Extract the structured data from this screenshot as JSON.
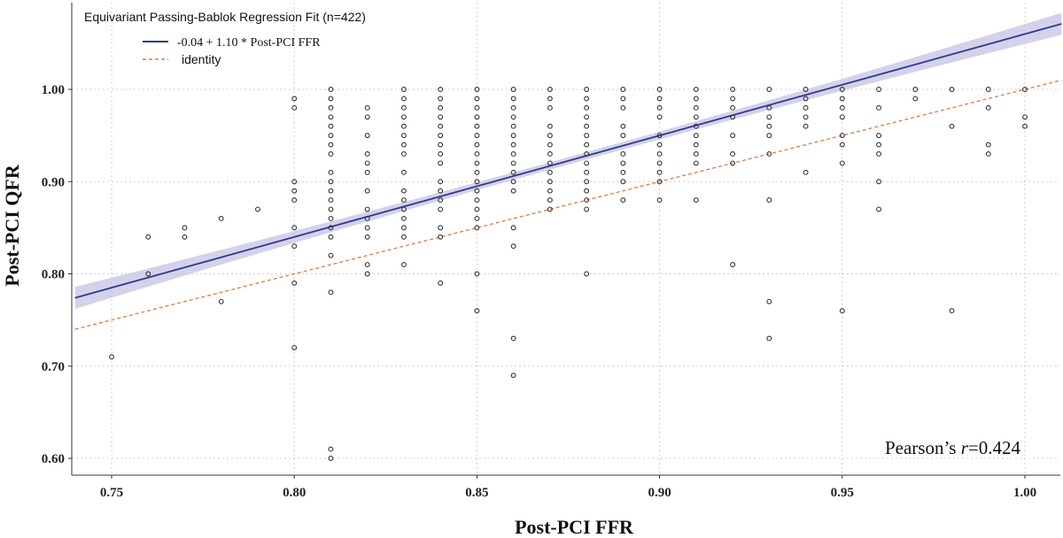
{
  "colors": {
    "regression": "#2e3a8c",
    "ci_band": "#c9c6e6",
    "identity": "#e07a3a",
    "points": "#333333",
    "grid": "#d0d0d0"
  },
  "chart_data": {
    "type": "scatter",
    "title": "",
    "xlabel": "Post-PCI FFR",
    "ylabel": "Post-PCI QFR",
    "xlim": [
      0.74,
      1.01
    ],
    "ylim": [
      0.58,
      1.08
    ],
    "x_ticks": [
      0.75,
      0.8,
      0.85,
      0.9,
      0.95,
      1.0
    ],
    "x_tick_labels": [
      "0.75",
      "0.80",
      "0.85",
      "0.90",
      "0.95",
      "1.00"
    ],
    "y_ticks": [
      0.6,
      0.7,
      0.8,
      0.9,
      1.0
    ],
    "y_tick_labels": [
      "0.60",
      "0.70",
      "0.80",
      "0.90",
      "1.00"
    ],
    "grid": true,
    "legend": {
      "title": "Equivariant Passing-Bablok Regression Fit (n=422)",
      "placement": "top-left",
      "entries": [
        {
          "label": "-0.04 + 1.10 * Post-PCI FFR",
          "style": "solid",
          "color": "#2e3a8c"
        },
        {
          "label": "identity",
          "style": "dashed",
          "color": "#e07a3a"
        }
      ]
    },
    "regression": {
      "intercept": -0.04,
      "slope": 1.1,
      "ci_half_width_ends": 0.012,
      "ci_half_width_mid": 0.004
    },
    "identity": {
      "intercept": 0.0,
      "slope": 1.0
    },
    "annotation": {
      "prefix": "Pearson’s ",
      "variable": "r",
      "value": "=0.424",
      "placement": "bottom-right"
    },
    "points": [
      [
        0.75,
        0.71
      ],
      [
        0.76,
        0.84
      ],
      [
        0.76,
        0.8
      ],
      [
        0.77,
        0.85
      ],
      [
        0.77,
        0.84
      ],
      [
        0.78,
        0.86
      ],
      [
        0.78,
        0.77
      ],
      [
        0.79,
        0.87
      ],
      [
        0.8,
        0.99
      ],
      [
        0.8,
        0.98
      ],
      [
        0.8,
        0.9
      ],
      [
        0.8,
        0.89
      ],
      [
        0.8,
        0.88
      ],
      [
        0.8,
        0.85
      ],
      [
        0.8,
        0.83
      ],
      [
        0.8,
        0.79
      ],
      [
        0.8,
        0.72
      ],
      [
        0.81,
        1.0
      ],
      [
        0.81,
        0.99
      ],
      [
        0.81,
        0.98
      ],
      [
        0.81,
        0.97
      ],
      [
        0.81,
        0.96
      ],
      [
        0.81,
        0.95
      ],
      [
        0.81,
        0.94
      ],
      [
        0.81,
        0.93
      ],
      [
        0.81,
        0.91
      ],
      [
        0.81,
        0.9
      ],
      [
        0.81,
        0.89
      ],
      [
        0.81,
        0.88
      ],
      [
        0.81,
        0.87
      ],
      [
        0.81,
        0.86
      ],
      [
        0.81,
        0.85
      ],
      [
        0.81,
        0.84
      ],
      [
        0.81,
        0.82
      ],
      [
        0.81,
        0.78
      ],
      [
        0.81,
        0.61
      ],
      [
        0.81,
        0.6
      ],
      [
        0.82,
        0.98
      ],
      [
        0.82,
        0.97
      ],
      [
        0.82,
        0.95
      ],
      [
        0.82,
        0.93
      ],
      [
        0.82,
        0.92
      ],
      [
        0.82,
        0.91
      ],
      [
        0.82,
        0.89
      ],
      [
        0.82,
        0.87
      ],
      [
        0.82,
        0.86
      ],
      [
        0.82,
        0.85
      ],
      [
        0.82,
        0.84
      ],
      [
        0.82,
        0.81
      ],
      [
        0.82,
        0.8
      ],
      [
        0.83,
        1.0
      ],
      [
        0.83,
        0.99
      ],
      [
        0.83,
        0.98
      ],
      [
        0.83,
        0.97
      ],
      [
        0.83,
        0.96
      ],
      [
        0.83,
        0.95
      ],
      [
        0.83,
        0.94
      ],
      [
        0.83,
        0.93
      ],
      [
        0.83,
        0.91
      ],
      [
        0.83,
        0.89
      ],
      [
        0.83,
        0.88
      ],
      [
        0.83,
        0.87
      ],
      [
        0.83,
        0.86
      ],
      [
        0.83,
        0.85
      ],
      [
        0.83,
        0.84
      ],
      [
        0.83,
        0.81
      ],
      [
        0.84,
        1.0
      ],
      [
        0.84,
        0.99
      ],
      [
        0.84,
        0.98
      ],
      [
        0.84,
        0.97
      ],
      [
        0.84,
        0.96
      ],
      [
        0.84,
        0.95
      ],
      [
        0.84,
        0.94
      ],
      [
        0.84,
        0.93
      ],
      [
        0.84,
        0.92
      ],
      [
        0.84,
        0.9
      ],
      [
        0.84,
        0.89
      ],
      [
        0.84,
        0.88
      ],
      [
        0.84,
        0.87
      ],
      [
        0.84,
        0.85
      ],
      [
        0.84,
        0.84
      ],
      [
        0.84,
        0.79
      ],
      [
        0.85,
        1.0
      ],
      [
        0.85,
        0.99
      ],
      [
        0.85,
        0.98
      ],
      [
        0.85,
        0.97
      ],
      [
        0.85,
        0.96
      ],
      [
        0.85,
        0.95
      ],
      [
        0.85,
        0.94
      ],
      [
        0.85,
        0.93
      ],
      [
        0.85,
        0.92
      ],
      [
        0.85,
        0.91
      ],
      [
        0.85,
        0.9
      ],
      [
        0.85,
        0.89
      ],
      [
        0.85,
        0.88
      ],
      [
        0.85,
        0.87
      ],
      [
        0.85,
        0.86
      ],
      [
        0.85,
        0.85
      ],
      [
        0.85,
        0.8
      ],
      [
        0.85,
        0.76
      ],
      [
        0.86,
        1.0
      ],
      [
        0.86,
        0.99
      ],
      [
        0.86,
        0.98
      ],
      [
        0.86,
        0.97
      ],
      [
        0.86,
        0.96
      ],
      [
        0.86,
        0.95
      ],
      [
        0.86,
        0.94
      ],
      [
        0.86,
        0.93
      ],
      [
        0.86,
        0.92
      ],
      [
        0.86,
        0.91
      ],
      [
        0.86,
        0.9
      ],
      [
        0.86,
        0.89
      ],
      [
        0.86,
        0.85
      ],
      [
        0.86,
        0.83
      ],
      [
        0.86,
        0.73
      ],
      [
        0.86,
        0.69
      ],
      [
        0.87,
        1.0
      ],
      [
        0.87,
        0.99
      ],
      [
        0.87,
        0.98
      ],
      [
        0.87,
        0.96
      ],
      [
        0.87,
        0.95
      ],
      [
        0.87,
        0.94
      ],
      [
        0.87,
        0.93
      ],
      [
        0.87,
        0.92
      ],
      [
        0.87,
        0.91
      ],
      [
        0.87,
        0.9
      ],
      [
        0.87,
        0.89
      ],
      [
        0.87,
        0.88
      ],
      [
        0.87,
        0.87
      ],
      [
        0.88,
        1.0
      ],
      [
        0.88,
        0.99
      ],
      [
        0.88,
        0.98
      ],
      [
        0.88,
        0.97
      ],
      [
        0.88,
        0.96
      ],
      [
        0.88,
        0.95
      ],
      [
        0.88,
        0.94
      ],
      [
        0.88,
        0.93
      ],
      [
        0.88,
        0.92
      ],
      [
        0.88,
        0.91
      ],
      [
        0.88,
        0.9
      ],
      [
        0.88,
        0.89
      ],
      [
        0.88,
        0.88
      ],
      [
        0.88,
        0.87
      ],
      [
        0.88,
        0.8
      ],
      [
        0.89,
        1.0
      ],
      [
        0.89,
        0.99
      ],
      [
        0.89,
        0.98
      ],
      [
        0.89,
        0.96
      ],
      [
        0.89,
        0.95
      ],
      [
        0.89,
        0.93
      ],
      [
        0.89,
        0.92
      ],
      [
        0.89,
        0.91
      ],
      [
        0.89,
        0.9
      ],
      [
        0.89,
        0.88
      ],
      [
        0.9,
        1.0
      ],
      [
        0.9,
        0.99
      ],
      [
        0.9,
        0.98
      ],
      [
        0.9,
        0.97
      ],
      [
        0.9,
        0.95
      ],
      [
        0.9,
        0.94
      ],
      [
        0.9,
        0.93
      ],
      [
        0.9,
        0.92
      ],
      [
        0.9,
        0.91
      ],
      [
        0.9,
        0.9
      ],
      [
        0.9,
        0.88
      ],
      [
        0.91,
        1.0
      ],
      [
        0.91,
        0.99
      ],
      [
        0.91,
        0.98
      ],
      [
        0.91,
        0.97
      ],
      [
        0.91,
        0.96
      ],
      [
        0.91,
        0.95
      ],
      [
        0.91,
        0.94
      ],
      [
        0.91,
        0.93
      ],
      [
        0.91,
        0.92
      ],
      [
        0.91,
        0.88
      ],
      [
        0.92,
        1.0
      ],
      [
        0.92,
        0.99
      ],
      [
        0.92,
        0.98
      ],
      [
        0.92,
        0.97
      ],
      [
        0.92,
        0.95
      ],
      [
        0.92,
        0.93
      ],
      [
        0.92,
        0.92
      ],
      [
        0.92,
        0.81
      ],
      [
        0.93,
        1.0
      ],
      [
        0.93,
        0.98
      ],
      [
        0.93,
        0.97
      ],
      [
        0.93,
        0.96
      ],
      [
        0.93,
        0.95
      ],
      [
        0.93,
        0.93
      ],
      [
        0.93,
        0.88
      ],
      [
        0.93,
        0.77
      ],
      [
        0.93,
        0.73
      ],
      [
        0.94,
        1.0
      ],
      [
        0.94,
        0.99
      ],
      [
        0.94,
        0.98
      ],
      [
        0.94,
        0.97
      ],
      [
        0.94,
        0.96
      ],
      [
        0.94,
        0.91
      ],
      [
        0.95,
        1.0
      ],
      [
        0.95,
        0.99
      ],
      [
        0.95,
        0.98
      ],
      [
        0.95,
        0.97
      ],
      [
        0.95,
        0.95
      ],
      [
        0.95,
        0.94
      ],
      [
        0.95,
        0.92
      ],
      [
        0.95,
        0.76
      ],
      [
        0.96,
        1.0
      ],
      [
        0.96,
        0.98
      ],
      [
        0.96,
        0.95
      ],
      [
        0.96,
        0.94
      ],
      [
        0.96,
        0.93
      ],
      [
        0.96,
        0.9
      ],
      [
        0.96,
        0.87
      ],
      [
        0.97,
        1.0
      ],
      [
        0.97,
        0.99
      ],
      [
        0.98,
        1.0
      ],
      [
        0.98,
        0.96
      ],
      [
        0.98,
        0.76
      ],
      [
        0.99,
        1.0
      ],
      [
        0.99,
        0.98
      ],
      [
        0.99,
        0.94
      ],
      [
        0.99,
        0.93
      ],
      [
        1.0,
        1.0
      ],
      [
        1.0,
        0.97
      ],
      [
        1.0,
        0.96
      ]
    ]
  }
}
